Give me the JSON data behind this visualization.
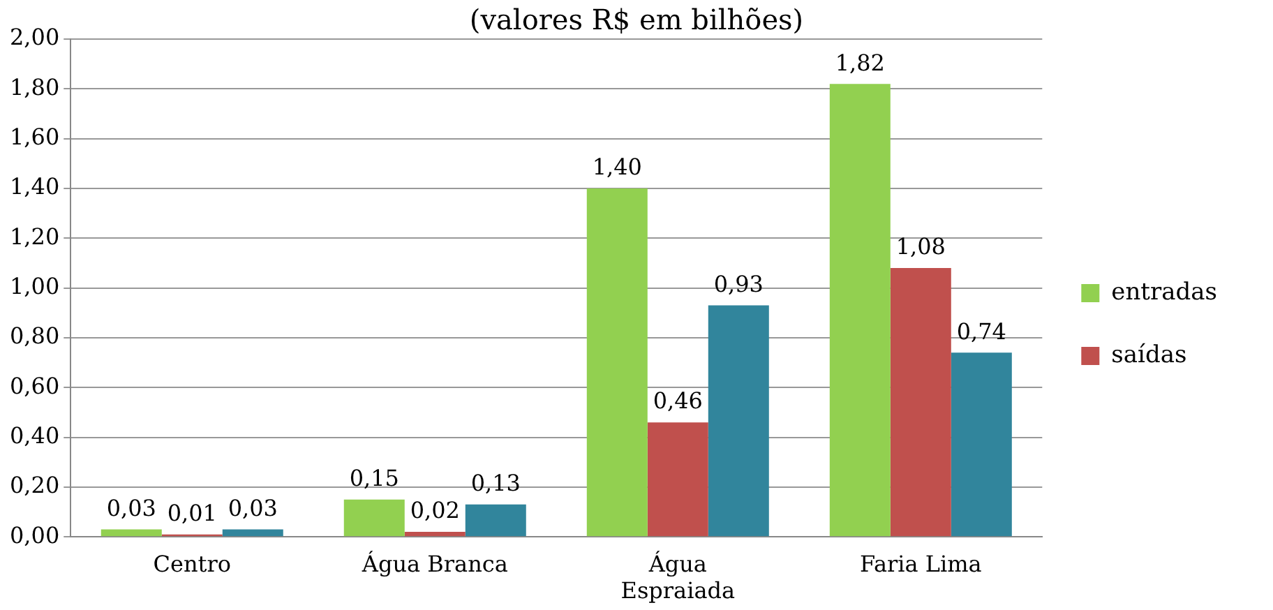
{
  "chart_data": {
    "type": "bar",
    "title": "(valores R$ em bilhões)",
    "categories": [
      "Centro",
      "Água Branca",
      "Água Espraiada",
      "Faria Lima"
    ],
    "series": [
      {
        "name": "entradas",
        "color": "#92d050",
        "values": [
          0.03,
          0.15,
          1.4,
          1.82
        ],
        "value_labels": [
          "0,03",
          "0,15",
          "1,40",
          "1,82"
        ]
      },
      {
        "name": "saídas",
        "color": "#c0504d",
        "values": [
          0.01,
          0.02,
          0.46,
          1.08
        ],
        "value_labels": [
          "0,01",
          "0,02",
          "0,46",
          "1,08"
        ]
      },
      {
        "color": "#31859c",
        "values": [
          0.03,
          0.13,
          0.93,
          0.74
        ],
        "value_labels": [
          "0,03",
          "0,13",
          "0,93",
          "0,74"
        ]
      }
    ],
    "ylim": [
      0,
      2
    ],
    "yticks": [
      {
        "value": 0,
        "label": "0,00"
      },
      {
        "value": 0.2,
        "label": "0,20"
      },
      {
        "value": 0.4,
        "label": "0,40"
      },
      {
        "value": 0.6,
        "label": "0,60"
      },
      {
        "value": 0.8,
        "label": "0,80"
      },
      {
        "value": 1,
        "label": "1,00"
      },
      {
        "value": 1.2,
        "label": "1,20"
      },
      {
        "value": 1.4,
        "label": "1,40"
      },
      {
        "value": 1.6,
        "label": "1,60"
      },
      {
        "value": 1.8,
        "label": "1,80"
      },
      {
        "value": 2,
        "label": "2,00"
      }
    ],
    "grid": "y",
    "legend": "right"
  }
}
